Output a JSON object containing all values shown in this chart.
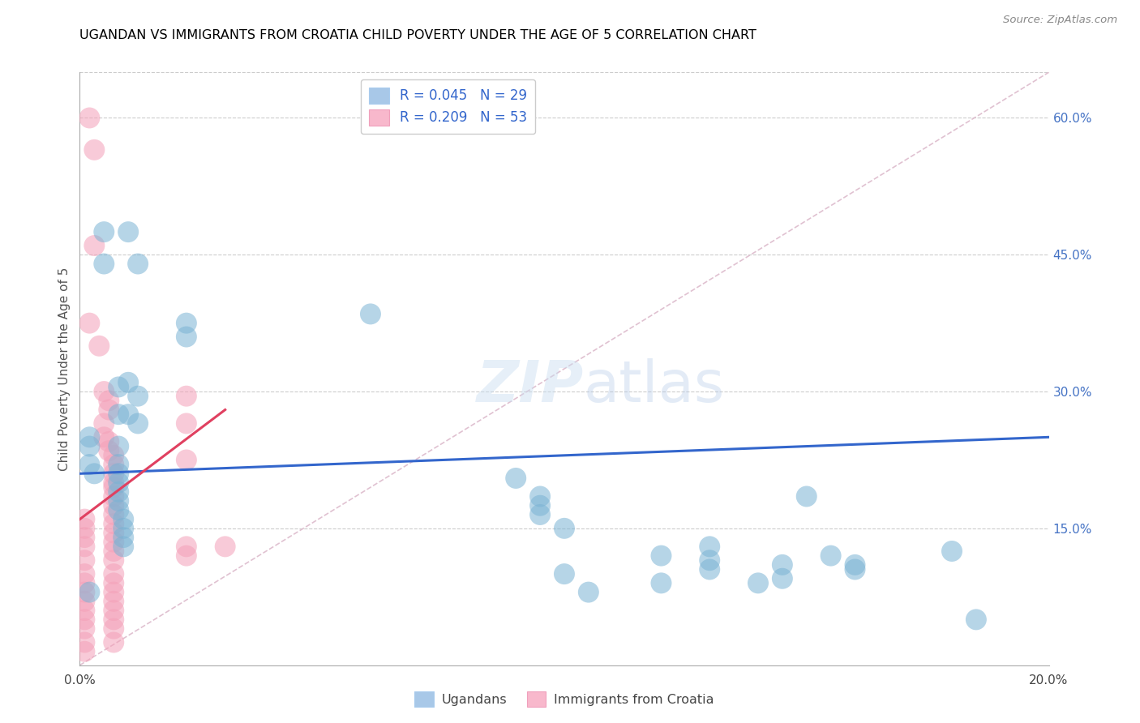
{
  "title": "UGANDAN VS IMMIGRANTS FROM CROATIA CHILD POVERTY UNDER THE AGE OF 5 CORRELATION CHART",
  "source": "Source: ZipAtlas.com",
  "ylabel": "Child Poverty Under the Age of 5",
  "xlim": [
    0.0,
    0.2
  ],
  "ylim": [
    0.0,
    0.65
  ],
  "ugandan_color": "#7ab3d4",
  "croatia_color": "#f4a0b8",
  "ugandan_line_color": "#3366cc",
  "croatia_line_color": "#e04060",
  "ugandan_scatter": [
    [
      0.005,
      0.475
    ],
    [
      0.005,
      0.44
    ],
    [
      0.01,
      0.475
    ],
    [
      0.012,
      0.44
    ],
    [
      0.008,
      0.305
    ],
    [
      0.01,
      0.31
    ],
    [
      0.008,
      0.275
    ],
    [
      0.01,
      0.275
    ],
    [
      0.012,
      0.295
    ],
    [
      0.012,
      0.265
    ],
    [
      0.008,
      0.24
    ],
    [
      0.008,
      0.22
    ],
    [
      0.008,
      0.21
    ],
    [
      0.008,
      0.2
    ],
    [
      0.008,
      0.19
    ],
    [
      0.008,
      0.18
    ],
    [
      0.008,
      0.17
    ],
    [
      0.009,
      0.16
    ],
    [
      0.009,
      0.15
    ],
    [
      0.009,
      0.14
    ],
    [
      0.009,
      0.13
    ],
    [
      0.003,
      0.21
    ],
    [
      0.002,
      0.22
    ],
    [
      0.002,
      0.24
    ],
    [
      0.002,
      0.25
    ],
    [
      0.002,
      0.08
    ],
    [
      0.022,
      0.375
    ],
    [
      0.022,
      0.36
    ],
    [
      0.06,
      0.385
    ],
    [
      0.09,
      0.205
    ],
    [
      0.095,
      0.185
    ],
    [
      0.095,
      0.175
    ],
    [
      0.095,
      0.165
    ],
    [
      0.1,
      0.15
    ],
    [
      0.1,
      0.1
    ],
    [
      0.105,
      0.08
    ],
    [
      0.12,
      0.12
    ],
    [
      0.12,
      0.09
    ],
    [
      0.13,
      0.13
    ],
    [
      0.13,
      0.115
    ],
    [
      0.13,
      0.105
    ],
    [
      0.14,
      0.09
    ],
    [
      0.145,
      0.11
    ],
    [
      0.145,
      0.095
    ],
    [
      0.15,
      0.185
    ],
    [
      0.155,
      0.12
    ],
    [
      0.16,
      0.11
    ],
    [
      0.16,
      0.105
    ],
    [
      0.18,
      0.125
    ],
    [
      0.185,
      0.05
    ]
  ],
  "croatia_scatter": [
    [
      0.002,
      0.6
    ],
    [
      0.003,
      0.565
    ],
    [
      0.003,
      0.46
    ],
    [
      0.002,
      0.375
    ],
    [
      0.004,
      0.35
    ],
    [
      0.005,
      0.3
    ],
    [
      0.006,
      0.29
    ],
    [
      0.006,
      0.28
    ],
    [
      0.005,
      0.265
    ],
    [
      0.005,
      0.25
    ],
    [
      0.006,
      0.245
    ],
    [
      0.006,
      0.235
    ],
    [
      0.007,
      0.23
    ],
    [
      0.007,
      0.22
    ],
    [
      0.007,
      0.21
    ],
    [
      0.007,
      0.2
    ],
    [
      0.007,
      0.195
    ],
    [
      0.007,
      0.185
    ],
    [
      0.007,
      0.175
    ],
    [
      0.007,
      0.165
    ],
    [
      0.007,
      0.155
    ],
    [
      0.007,
      0.145
    ],
    [
      0.007,
      0.135
    ],
    [
      0.007,
      0.125
    ],
    [
      0.007,
      0.115
    ],
    [
      0.007,
      0.1
    ],
    [
      0.007,
      0.09
    ],
    [
      0.007,
      0.08
    ],
    [
      0.007,
      0.07
    ],
    [
      0.007,
      0.06
    ],
    [
      0.007,
      0.05
    ],
    [
      0.007,
      0.04
    ],
    [
      0.007,
      0.025
    ],
    [
      0.001,
      0.16
    ],
    [
      0.001,
      0.15
    ],
    [
      0.001,
      0.14
    ],
    [
      0.001,
      0.13
    ],
    [
      0.001,
      0.115
    ],
    [
      0.001,
      0.1
    ],
    [
      0.001,
      0.09
    ],
    [
      0.001,
      0.08
    ],
    [
      0.001,
      0.07
    ],
    [
      0.001,
      0.06
    ],
    [
      0.001,
      0.05
    ],
    [
      0.001,
      0.04
    ],
    [
      0.001,
      0.025
    ],
    [
      0.001,
      0.015
    ],
    [
      0.022,
      0.295
    ],
    [
      0.022,
      0.265
    ],
    [
      0.022,
      0.225
    ],
    [
      0.022,
      0.13
    ],
    [
      0.022,
      0.12
    ],
    [
      0.03,
      0.13
    ]
  ],
  "ugandan_line": {
    "x0": 0.0,
    "x1": 0.2,
    "y0": 0.21,
    "y1": 0.25
  },
  "croatia_line": {
    "x0": 0.0,
    "x1": 0.03,
    "y0": 0.16,
    "y1": 0.28
  },
  "diagonal_line": {
    "x0": 0.0,
    "x1": 0.2,
    "y0": 0.0,
    "y1": 0.65
  }
}
